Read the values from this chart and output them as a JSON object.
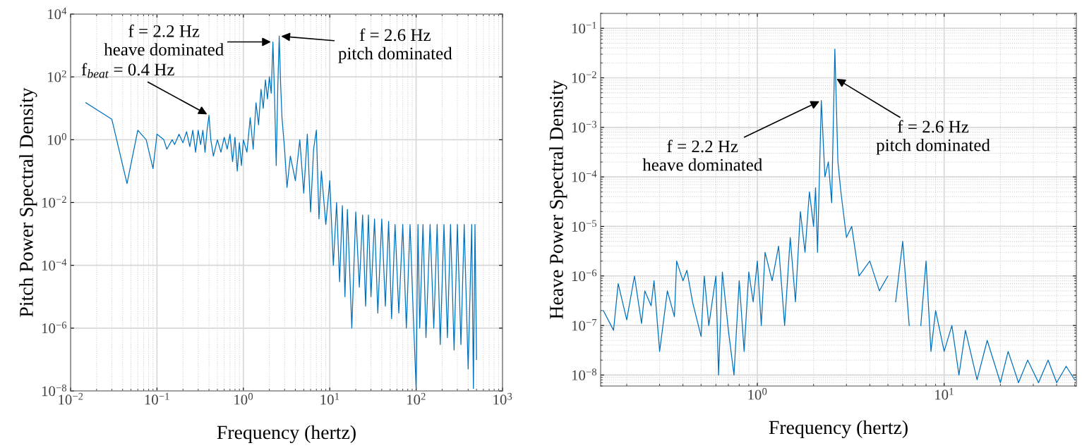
{
  "chart_data": [
    {
      "type": "line",
      "xlabel": "Frequency (hertz)",
      "ylabel": "Pitch Power Spectral Density",
      "log": "xy",
      "grid": true,
      "color": "#0072bd",
      "xlim": [
        0.01,
        1000
      ],
      "ylim": [
        1e-08,
        10000
      ],
      "xticks": [
        {
          "value": 0.01,
          "label": "10$^{−2}$"
        },
        {
          "value": 0.1,
          "label": "10$^{−1}$"
        },
        {
          "value": 1,
          "label": "10$^{0}$"
        },
        {
          "value": 10,
          "label": "10$^{1}$"
        },
        {
          "value": 100,
          "label": "10$^{2}$"
        },
        {
          "value": 1000,
          "label": "10$^{3}$"
        }
      ],
      "yticks": [
        {
          "value": 1e-08,
          "label": "10$^{−8}$"
        },
        {
          "value": 1e-06,
          "label": "10$^{−6}$"
        },
        {
          "value": 0.0001,
          "label": "10$^{−4}$"
        },
        {
          "value": 0.01,
          "label": "10$^{−2}$"
        },
        {
          "value": 1,
          "label": "10$^{0}$"
        },
        {
          "value": 100,
          "label": "10$^{2}$"
        },
        {
          "value": 10000,
          "label": "10$^{4}$"
        }
      ],
      "x": [
        0.015,
        0.03,
        0.045,
        0.06,
        0.075,
        0.09,
        0.1,
        0.12,
        0.13,
        0.15,
        0.16,
        0.18,
        0.2,
        0.22,
        0.24,
        0.26,
        0.28,
        0.3,
        0.32,
        0.34,
        0.36,
        0.38,
        0.4,
        0.42,
        0.45,
        0.5,
        0.55,
        0.6,
        0.65,
        0.7,
        0.75,
        0.8,
        0.85,
        0.9,
        0.95,
        1.0,
        1.1,
        1.2,
        1.3,
        1.4,
        1.5,
        1.6,
        1.7,
        1.8,
        1.9,
        2.0,
        2.1,
        2.2,
        2.3,
        2.4,
        2.5,
        2.6,
        2.7,
        2.8,
        3.0,
        3.2,
        3.5,
        4.0,
        4.5,
        5.0,
        5.5,
        6.0,
        6.5,
        7.0,
        7.5,
        8,
        9,
        10,
        11,
        12,
        13,
        14,
        15,
        16,
        18,
        20,
        22,
        24,
        26,
        28,
        30,
        33,
        36,
        40,
        44,
        48,
        52,
        57,
        63,
        70,
        77,
        85,
        93,
        100,
        105,
        110,
        120,
        130,
        145,
        160,
        175,
        190,
        210,
        230,
        250,
        275,
        300,
        330,
        360,
        400,
        440,
        460,
        480,
        500
      ],
      "values": [
        15,
        4.5,
        0.04,
        2,
        1.0,
        0.12,
        1.5,
        1.0,
        0.5,
        1.0,
        0.7,
        1.5,
        0.8,
        1.8,
        0.6,
        2,
        0.4,
        2,
        0.7,
        2,
        0.4,
        2,
        6,
        1,
        0.3,
        1,
        0.4,
        1.2,
        0.5,
        1.5,
        0.2,
        1.2,
        0.1,
        0.8,
        0.15,
        1.0,
        0.4,
        5,
        0.5,
        15,
        3,
        40,
        10,
        80,
        20,
        100,
        30,
        1300,
        20,
        0.15,
        40,
        2000,
        60,
        5,
        0.5,
        0.03,
        0.3,
        0.05,
        1.0,
        0.02,
        1.5,
        0.005,
        0.5,
        2,
        0.003,
        0.1,
        0.002,
        0.05,
        0.0001,
        0.01,
        3e-05,
        0.008,
        1e-05,
        0.006,
        1e-06,
        0.005,
        2e-05,
        0.004,
        5e-06,
        0.004,
        1e-05,
        0.003,
        3e-06,
        0.003,
        5e-06,
        0.0025,
        2e-06,
        0.002,
        3e-06,
        0.002,
        1e-06,
        0.002,
        2e-06,
        1.2e-08,
        0.002,
        1e-06,
        0.002,
        5e-07,
        0.002,
        1e-06,
        0.002,
        3e-07,
        0.002,
        5e-07,
        0.002,
        2e-07,
        0.002,
        3e-07,
        0.002,
        5e-08,
        0.002,
        1.2e-08,
        0.002,
        1e-07
      ],
      "annotations": [
        {
          "text": "f$_{beat}$ = 0.4 Hz",
          "x": 0.4,
          "y": 6
        },
        {
          "text": "f = 2.2 Hz\nheave dominated",
          "x": 2.2,
          "y": 1300
        },
        {
          "text": "f = 2.6 Hz\npitch dominated",
          "x": 2.6,
          "y": 2000
        }
      ]
    },
    {
      "type": "line",
      "xlabel": "Frequency (hertz)",
      "ylabel": "Heave Power Spectral Density",
      "log": "xy",
      "grid": true,
      "color": "#0072bd",
      "xlim": [
        0.145,
        51
      ],
      "ylim": [
        6e-09,
        0.2
      ],
      "xticks": [
        {
          "value": 1,
          "label": "10$^{0}$"
        },
        {
          "value": 10,
          "label": "10$^{1}$"
        }
      ],
      "yticks": [
        {
          "value": 1e-08,
          "label": "10$^{−8}$"
        },
        {
          "value": 1e-07,
          "label": "10$^{−7}$"
        },
        {
          "value": 1e-06,
          "label": "10$^{−6}$"
        },
        {
          "value": 1e-05,
          "label": "10$^{−5}$"
        },
        {
          "value": 0.0001,
          "label": "10$^{−4}$"
        },
        {
          "value": 0.001,
          "label": "10$^{−3}$"
        },
        {
          "value": 0.01,
          "label": "10$^{−2}$"
        },
        {
          "value": 0.1,
          "label": "10$^{−1}$"
        }
      ],
      "x": [
        0.15,
        0.17,
        0.18,
        0.2,
        0.22,
        0.24,
        0.25,
        0.27,
        0.28,
        0.3,
        0.33,
        0.36,
        0.37,
        0.4,
        0.42,
        0.45,
        0.5,
        0.52,
        0.55,
        0.6,
        0.62,
        0.65,
        0.7,
        0.75,
        0.8,
        0.85,
        0.9,
        0.95,
        1.0,
        1.05,
        1.1,
        1.2,
        1.3,
        1.4,
        1.5,
        1.6,
        1.7,
        1.8,
        1.9,
        2.0,
        2.05,
        2.1,
        2.2,
        2.3,
        2.4,
        2.5,
        2.6,
        2.7,
        2.8,
        3.0,
        3.2,
        3.5,
        4.0,
        4.5,
        5.0,
        5.2,
        5.5,
        6.0,
        6.5,
        7.0,
        7.5,
        8,
        8.5,
        9,
        10,
        11,
        12,
        13,
        15,
        17,
        20,
        22,
        25,
        28,
        32,
        36,
        40,
        45,
        50
      ],
      "values": [
        2e-07,
        8e-08,
        7e-07,
        1.3e-07,
        1e-06,
        1.1e-07,
        5e-07,
        2.5e-07,
        8e-07,
        3e-08,
        5e-07,
        1.5e-07,
        2e-06,
        8e-07,
        1.3e-06,
        3e-07,
        6e-08,
        1e-06,
        1e-07,
        1e-06,
        1e-08,
        1.2e-06,
        8e-08,
        1e-08,
        8e-07,
        3e-08,
        1.2e-06,
        3e-07,
        2e-06,
        1e-07,
        3e-06,
        8e-07,
        4e-06,
        1e-07,
        6e-06,
        3e-07,
        2e-05,
        3e-06,
        5e-05,
        1e-05,
        6e-05,
        3e-06,
        0.0035,
        0.0001,
        0.0002,
        3e-05,
        0.038,
        0.0002,
        5e-05,
        6e-06,
        1e-05,
        1e-06,
        2e-06,
        5e-07,
        1e-06,
        null,
        3e-07,
        5e-06,
        1e-07,
        null,
        1e-07,
        2e-06,
        3e-08,
        2e-07,
        3e-08,
        1e-07,
        1e-08,
        8e-08,
        8e-09,
        5e-08,
        7e-09,
        3e-08,
        7e-09,
        2e-08,
        7e-09,
        2e-08,
        7e-09,
        1.5e-08,
        8e-09
      ],
      "annotations": [
        {
          "text": "f = 2.2 Hz\nheave dominated",
          "x": 2.2,
          "y": 0.0035
        },
        {
          "text": "f = 2.6 Hz\npitch dominated",
          "x": 2.6,
          "y": 0.01
        }
      ]
    }
  ]
}
